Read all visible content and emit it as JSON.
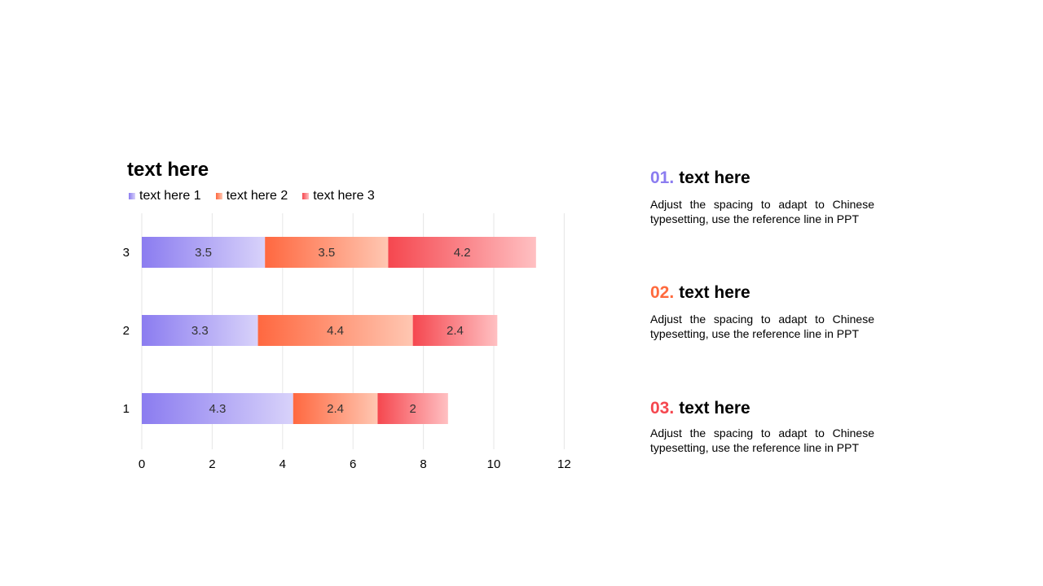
{
  "colors": {
    "series1": [
      "#8B7CF0",
      "#D8D2FA"
    ],
    "series2": [
      "#FF6840",
      "#FFC7B2"
    ],
    "series3": [
      "#F5474F",
      "#FFC0C2"
    ],
    "grid": "#E6E6E6"
  },
  "chart_data": {
    "type": "bar",
    "orientation": "horizontal",
    "stacked": true,
    "title": "text here",
    "categories": [
      "1",
      "2",
      "3"
    ],
    "series": [
      {
        "name": "text here 1",
        "values": [
          4.3,
          3.3,
          3.5
        ]
      },
      {
        "name": "text here 2",
        "values": [
          2.4,
          4.4,
          3.5
        ]
      },
      {
        "name": "text here 3",
        "values": [
          2,
          2.4,
          4.2
        ]
      }
    ],
    "xlim": [
      0,
      12
    ],
    "xticks": [
      0,
      2,
      4,
      6,
      8,
      10,
      12
    ],
    "grid": "vertical",
    "legend_position": "top-left"
  },
  "info": [
    {
      "number": "01.",
      "title": "text here",
      "body": "Adjust the spacing to adapt to Chinese typesetting, use the reference line in PPT",
      "color": "#8B7CF0"
    },
    {
      "number": "02.",
      "title": "text here",
      "body": "Adjust the spacing to adapt to Chinese typesetting, use the reference line in PPT",
      "color": "#FF6A3D"
    },
    {
      "number": "03.",
      "title": "text here",
      "body": "Adjust the spacing to adapt to Chinese typesetting, use the reference line in PPT",
      "color": "#F5474F"
    }
  ]
}
